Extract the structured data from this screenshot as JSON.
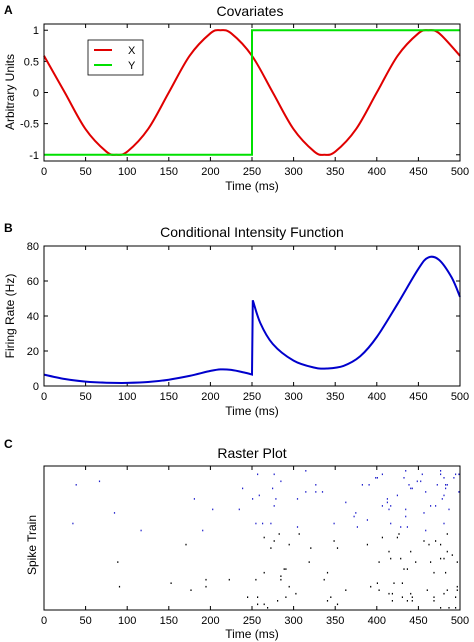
{
  "chart_data": [
    {
      "panel": "A",
      "type": "line",
      "title": "Covariates",
      "xlabel": "Time (ms)",
      "ylabel": "Arbitrary Units",
      "xlim": [
        0,
        500
      ],
      "ylim": [
        -1.1,
        1.1
      ],
      "xticks": [
        "0",
        "50",
        "100",
        "150",
        "200",
        "250",
        "300",
        "350",
        "400",
        "450",
        "500"
      ],
      "yticks": [
        "-1",
        "-0.5",
        "0",
        "0.5",
        "1"
      ],
      "legend_position": "top-left",
      "series": [
        {
          "name": "X",
          "color": "#e00000",
          "x": [
            0,
            25,
            50,
            75,
            87,
            100,
            125,
            150,
            175,
            200,
            212,
            225,
            250,
            275,
            300,
            325,
            337,
            350,
            375,
            400,
            425,
            450,
            462,
            475,
            500
          ],
          "y": [
            0.59,
            0.0,
            -0.59,
            -0.95,
            -1.0,
            -0.95,
            -0.59,
            0.0,
            0.59,
            0.95,
            1.0,
            0.95,
            0.59,
            0.0,
            -0.59,
            -0.95,
            -1.0,
            -0.95,
            -0.59,
            0.0,
            0.59,
            0.95,
            1.0,
            0.95,
            0.59
          ]
        },
        {
          "name": "Y",
          "color": "#00e000",
          "x": [
            0,
            250,
            250,
            500
          ],
          "y": [
            -1,
            -1,
            1,
            1
          ]
        }
      ]
    },
    {
      "panel": "B",
      "type": "line",
      "title": "Conditional Intensity Function",
      "xlabel": "Time (ms)",
      "ylabel": "Firing Rate (Hz)",
      "xlim": [
        0,
        500
      ],
      "ylim": [
        0,
        80
      ],
      "xticks": [
        "0",
        "50",
        "100",
        "150",
        "200",
        "250",
        "300",
        "350",
        "400",
        "450",
        "500"
      ],
      "yticks": [
        "0",
        "20",
        "40",
        "60",
        "80"
      ],
      "series": [
        {
          "name": "",
          "color": "#0000cc",
          "x": [
            0,
            25,
            50,
            75,
            100,
            125,
            150,
            175,
            200,
            212,
            225,
            240,
            250,
            251,
            260,
            275,
            300,
            325,
            340,
            360,
            380,
            400,
            425,
            450,
            462,
            475,
            490,
            500
          ],
          "y": [
            6.5,
            4.0,
            2.5,
            1.9,
            1.8,
            2.3,
            3.6,
            5.8,
            8.6,
            9.5,
            9.2,
            7.8,
            6.5,
            49.0,
            36.0,
            24.0,
            14.5,
            10.5,
            10.0,
            11.5,
            17.0,
            28.0,
            47.0,
            67.0,
            73.5,
            72.0,
            62.0,
            51.0
          ]
        }
      ]
    },
    {
      "panel": "C",
      "type": "scatter",
      "title": "Raster Plot",
      "xlabel": "Time (ms)",
      "ylabel": "Spike Train",
      "xlim": [
        0,
        500
      ],
      "xticks": [
        "0",
        "50",
        "100",
        "150",
        "200",
        "250",
        "300",
        "350",
        "400",
        "450",
        "500"
      ],
      "series": [
        {
          "name": "",
          "color": "#2222cc",
          "region": "upper trials"
        },
        {
          "name": "",
          "color": "#000000",
          "region": "lower trials"
        }
      ]
    }
  ]
}
